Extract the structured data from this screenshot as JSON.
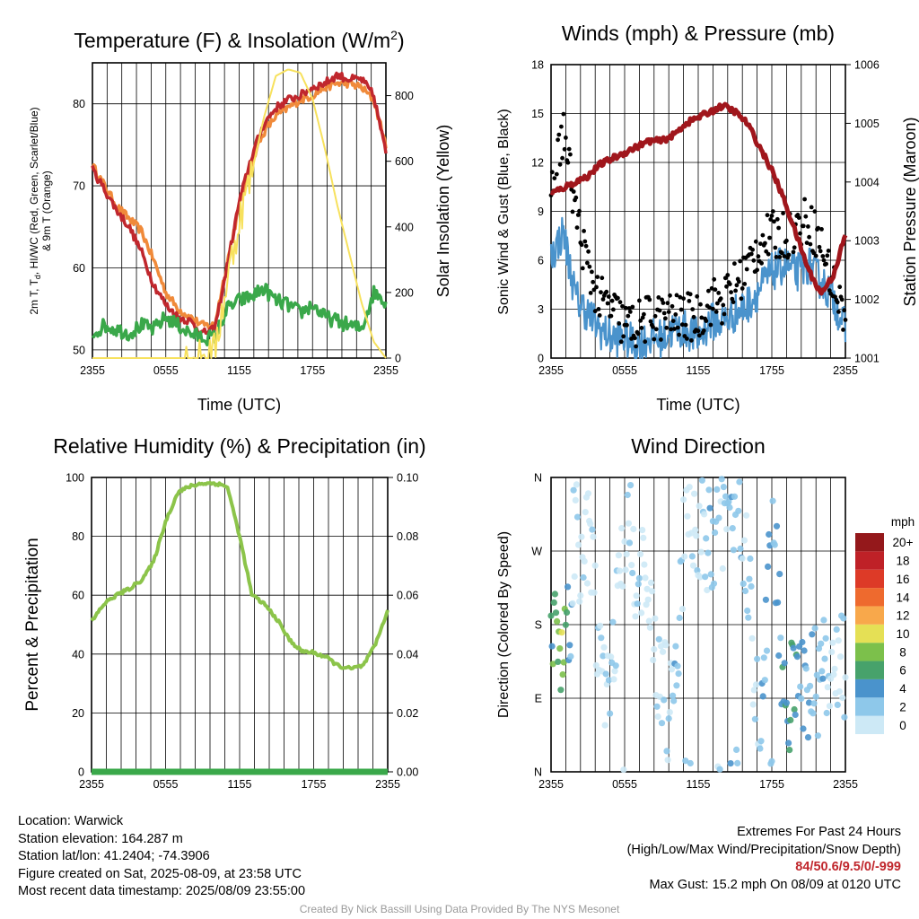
{
  "panels": {
    "temperature": {
      "title": "Temperature (F) & Insolation (W/m²)",
      "title_main": "Temperature (F) & Insolation (W/m",
      "title_sup": "2",
      "title_end": ")",
      "xlabel": "Time (UTC)",
      "ylabel_left_lines": [
        "2m T, T",
        "d",
        ", HI/WC (Red, Green, Scarlet/Blue)",
        "& 9m T (Orange)"
      ],
      "ylabel_right": "Solar Insolation (Yellow)",
      "x_ticks": [
        "2355",
        "0555",
        "1155",
        "1755",
        "2355"
      ],
      "y_ticks_left": [
        50,
        60,
        70,
        80
      ],
      "y_ticks_right": [
        0,
        200,
        400,
        600,
        800
      ]
    },
    "winds": {
      "title": "Winds (mph) & Pressure (mb)",
      "xlabel": "Time (UTC)",
      "ylabel_left": "Sonic Wind & Gust (Blue, Black)",
      "ylabel_right": "Station Pressure (Maroon)",
      "x_ticks": [
        "2355",
        "0555",
        "1155",
        "1755",
        "2355"
      ],
      "y_ticks_left": [
        0,
        3,
        6,
        9,
        12,
        15,
        18
      ],
      "y_ticks_right": [
        1001,
        1002,
        1003,
        1004,
        1005,
        1006
      ]
    },
    "humidity": {
      "title": "Relative Humidity (%) & Precipitation (in)",
      "ylabel_left": "Percent & Precipitation",
      "x_ticks": [
        "2355",
        "0555",
        "1155",
        "1755",
        "2355"
      ],
      "y_ticks_left": [
        0,
        20,
        40,
        60,
        80,
        100
      ],
      "y_ticks_right": [
        "0.00",
        "0.02",
        "0.04",
        "0.06",
        "0.08",
        "0.10"
      ]
    },
    "wind_direction": {
      "title": "Wind Direction",
      "ylabel_left": "Direction (Colored By Speed)",
      "x_ticks": [
        "2355",
        "0555",
        "1155",
        "1755",
        "2355"
      ],
      "y_ticks_left": [
        "N",
        "E",
        "S",
        "W",
        "N"
      ],
      "colorbar_title": "mph",
      "colorbar_labels": [
        "0",
        "2",
        "4",
        "6",
        "8",
        "10",
        "12",
        "14",
        "16",
        "18",
        "20+"
      ],
      "colorbar_colors": [
        "#cde9f6",
        "#8ec8ea",
        "#4a93cc",
        "#47a26b",
        "#7cc04b",
        "#e5e055",
        "#f8a84b",
        "#ee6a2e",
        "#dd3a27",
        "#bf2127",
        "#94181b"
      ]
    }
  },
  "colors": {
    "temp_2m": "#c0272d",
    "temp_9m": "#f08a3a",
    "dewpoint": "#3aa84a",
    "insolation": "#f7e15d",
    "wind_speed": "#4a93cc",
    "gust": "#000000",
    "pressure": "#a0161c",
    "humidity": "#8cc44a",
    "precip": "#3aa84a"
  },
  "chart_data": [
    {
      "type": "line",
      "title": "Temperature (F) & Insolation (W/m2)",
      "xlabel": "Time (UTC)",
      "ylabel": "2m T, Td, HI/WC (Red, Green, Scarlet/Blue) & 9m T (Orange)",
      "y2label": "Solar Insolation (Yellow)",
      "x": [
        0,
        1,
        2,
        3,
        4,
        5,
        6,
        7,
        8,
        9,
        10,
        11,
        12,
        13,
        14,
        15,
        16,
        17,
        18,
        19,
        20,
        21,
        22,
        23,
        24
      ],
      "ylim": [
        49,
        85
      ],
      "y2lim": [
        0,
        900
      ],
      "series": [
        {
          "values": [
            72,
            69.5,
            67,
            65,
            62,
            58,
            55.5,
            54,
            53.5,
            52,
            52.5,
            60,
            68,
            73.5,
            77.5,
            79.5,
            80.5,
            81,
            82,
            82.5,
            83.5,
            83,
            83,
            81,
            74
          ]
        },
        {
          "values": [
            72.5,
            70,
            67.5,
            66,
            64.5,
            61,
            57,
            55,
            54,
            53,
            53,
            60.5,
            67.5,
            73,
            76.5,
            78.5,
            79.5,
            80.5,
            81,
            82,
            82.5,
            82.5,
            82,
            80.5,
            75
          ]
        },
        {
          "values": [
            52,
            53,
            52.5,
            52,
            53,
            52.5,
            54,
            53,
            52,
            51.5,
            51.5,
            55,
            56,
            56.5,
            57.5,
            56,
            55.5,
            54.5,
            55.5,
            54,
            53.5,
            53,
            52.5,
            57,
            56
          ]
        },
        {
          "values": [
            0,
            0,
            0,
            0,
            0,
            0,
            0,
            0,
            0,
            0,
            20,
            230,
            420,
            560,
            730,
            860,
            880,
            870,
            790,
            640,
            470,
            320,
            170,
            50,
            0
          ]
        }
      ]
    },
    {
      "type": "line",
      "title": "Winds (mph) & Pressure (mb)",
      "xlabel": "Time (UTC)",
      "ylabel": "Sonic Wind & Gust (Blue, Black)",
      "y2label": "Station Pressure (Maroon)",
      "x": [
        0,
        1,
        2,
        3,
        4,
        5,
        6,
        7,
        8,
        9,
        10,
        11,
        12,
        13,
        14,
        15,
        16,
        17,
        18,
        19,
        20,
        21,
        22,
        23,
        24
      ],
      "ylim": [
        0,
        18
      ],
      "y2lim": [
        1001,
        1006
      ],
      "series": [
        {
          "values": [
            6,
            7.5,
            3.5,
            2.5,
            1.5,
            1,
            1,
            0.5,
            1,
            1,
            1.5,
            1.5,
            1,
            2,
            2,
            2.5,
            3,
            4,
            5,
            5.5,
            5,
            5.5,
            4.5,
            3.5,
            1.5
          ]
        },
        {
          "values": [
            10,
            14,
            9,
            5.5,
            3.5,
            3,
            2,
            2,
            2.5,
            2.5,
            2.5,
            2.5,
            2.5,
            3.5,
            3.5,
            4.5,
            5.5,
            7,
            7.5,
            7.5,
            8,
            8.5,
            7,
            4.5,
            2.5
          ]
        },
        {
          "values": [
            1003.8,
            1003.9,
            1004.0,
            1004.1,
            1004.3,
            1004.4,
            1004.5,
            1004.6,
            1004.7,
            1004.7,
            1004.8,
            1005.0,
            1005.1,
            1005.2,
            1005.3,
            1005.2,
            1005.0,
            1004.6,
            1004.2,
            1003.7,
            1003.1,
            1002.5,
            1002.1,
            1002.4,
            1003.1
          ]
        }
      ]
    },
    {
      "type": "line",
      "title": "Relative Humidity (%) & Precipitation (in)",
      "ylabel": "Percent & Precipitation",
      "x": [
        0,
        1,
        2,
        3,
        4,
        5,
        6,
        7,
        8,
        9,
        10,
        11,
        12,
        13,
        14,
        15,
        16,
        17,
        18,
        19,
        20,
        21,
        22,
        23,
        24
      ],
      "ylim": [
        0,
        100
      ],
      "y2lim": [
        0,
        0.1
      ],
      "series": [
        {
          "values": [
            51,
            57,
            60,
            62,
            65,
            71,
            85,
            95,
            97,
            98,
            98,
            97,
            80,
            60,
            57,
            52,
            45,
            41,
            40.5,
            39,
            36,
            35,
            36,
            43,
            55
          ]
        },
        {
          "values": [
            0,
            0,
            0,
            0,
            0,
            0,
            0,
            0,
            0,
            0,
            0,
            0,
            0,
            0,
            0,
            0,
            0,
            0,
            0,
            0,
            0,
            0,
            0,
            0,
            0
          ]
        }
      ]
    },
    {
      "type": "scatter",
      "title": "Wind Direction",
      "ylabel": "Direction (Colored By Speed)",
      "ylim": [
        0,
        360
      ],
      "x": [
        0,
        0.5,
        1,
        1.5,
        2,
        2.5,
        3,
        4,
        5,
        6,
        7,
        8,
        9,
        10,
        11,
        12,
        13,
        14,
        15,
        16,
        17,
        18,
        19,
        20,
        21,
        22,
        23,
        24
      ],
      "y": [
        140,
        165,
        170,
        168,
        330,
        230,
        300,
        120,
        130,
        310,
        250,
        200,
        100,
        60,
        330,
        300,
        280,
        310,
        330,
        260,
        30,
        340,
        90,
        100,
        110,
        115,
        120,
        125
      ],
      "speed": [
        6,
        8,
        10,
        4,
        2,
        1,
        1,
        2,
        2,
        1,
        2,
        1,
        2,
        3,
        2,
        1,
        3,
        2,
        4,
        2,
        3,
        4,
        5,
        6,
        4,
        3,
        2,
        2
      ]
    }
  ],
  "footer": {
    "location": "Location: Warwick",
    "elevation": "Station elevation: 164.287 m",
    "latlon": "Station lat/lon: 41.2404; -74.3906",
    "created": "Figure created on Sat, 2025-08-09, at 23:58 UTC",
    "recent": "Most recent data timestamp: 2025/08/09 23:55:00",
    "extremes_title": "Extremes For Past 24 Hours",
    "extremes_subtitle": "(High/Low/Max Wind/Precipitation/Snow Depth)",
    "extremes_values": "84/50.6/9.5/0/-999",
    "max_gust": "Max Gust: 15.2 mph On 08/09 at 0120 UTC"
  },
  "credit": "Created By Nick Bassill Using Data Provided By The NYS Mesonet"
}
